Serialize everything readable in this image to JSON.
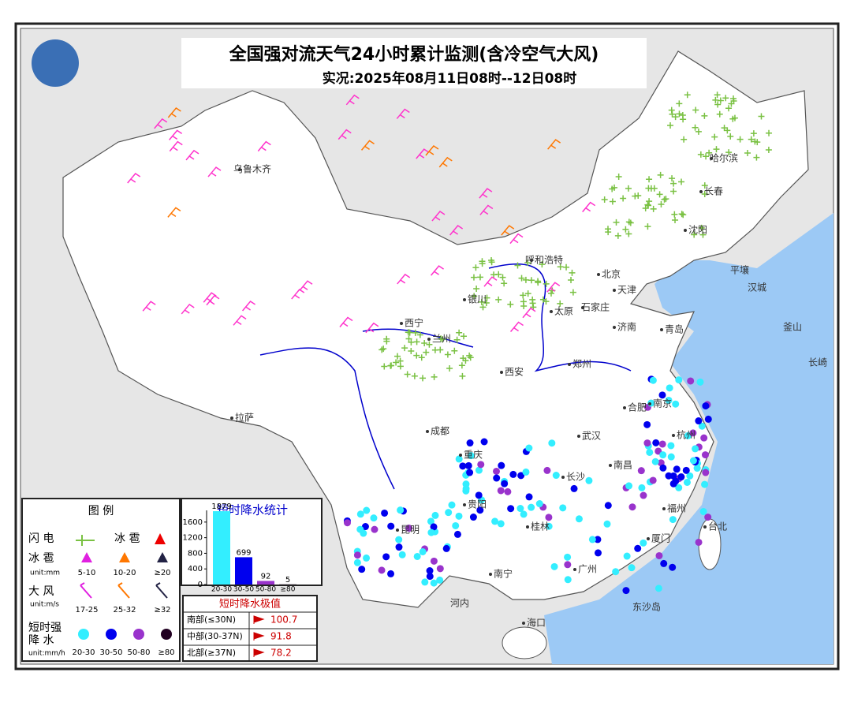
{
  "header": {
    "title": "全国强对流天气24小时累计监测(含冷空气大风)",
    "subtitle": "实况:2025年08月11日08时--12日08时"
  },
  "cities": [
    "乌鲁木齐",
    "哈尔滨",
    "长春",
    "沈阳",
    "呼和浩特",
    "北京",
    "天津",
    "银川",
    "太原",
    "石家庄",
    "济南",
    "青岛",
    "西宁",
    "兰州",
    "郑州",
    "西安",
    "合肥",
    "南京",
    "拉萨",
    "成都",
    "重庆",
    "武汉",
    "杭州",
    "长沙",
    "南昌",
    "贵阳",
    "福州",
    "昆明",
    "桂林",
    "台北",
    "南宁",
    "广州",
    "厦门",
    "海口"
  ],
  "foreign": [
    "平壤",
    "汉城",
    "釜山",
    "长崎",
    "河内",
    "东沙岛"
  ],
  "legend": {
    "title": "图 例",
    "lightning": "闪 电",
    "hail_symbol": "冰 雹",
    "hail": "冰 雹",
    "hail_unit": "unit:mm",
    "hail_levels": [
      "5-10",
      "10-20",
      "≥20"
    ],
    "wind": "大 风",
    "wind_unit": "unit:m/s",
    "wind_levels": [
      "17-25",
      "25-32",
      "≥32"
    ],
    "rain": "短时强",
    "rain2": "降 水",
    "rain_unit": "unit:mm/h",
    "rain_levels": [
      "20-30",
      "30-50",
      "50-80",
      "≥80"
    ]
  },
  "stats": {
    "title": "短时降水统计",
    "categories": [
      "20-30",
      "30-50",
      "50-80",
      "≥80"
    ],
    "values": [
      1879,
      699,
      92,
      5
    ],
    "colors": [
      "#33eeff",
      "#0000ee",
      "#9933cc",
      "#220022"
    ],
    "ylim": [
      0,
      1900
    ],
    "yticks": [
      0,
      400,
      800,
      1200,
      1600
    ]
  },
  "extremes": {
    "title": "短时降水极值",
    "rows": [
      [
        "南部(≤30N)",
        100.7
      ],
      [
        "中部(30-37N)",
        91.8
      ],
      [
        "北部(≥37N)",
        78.2
      ]
    ]
  }
}
